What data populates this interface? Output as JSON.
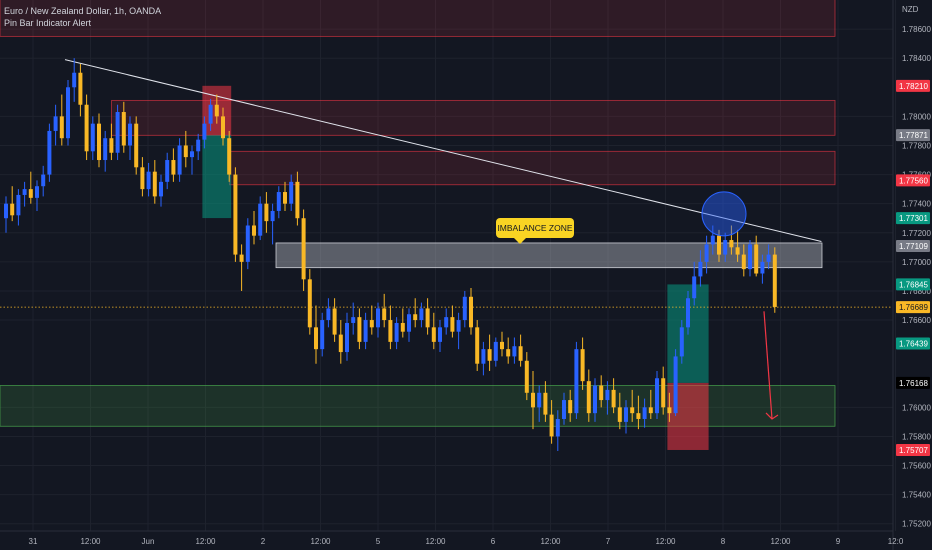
{
  "header": {
    "title": "Euro / New Zealand Dollar, 1h, OANDA",
    "indicator": "Pin Bar Indicator Alert"
  },
  "annotation": {
    "callout": "IMBALANCE ZONE"
  },
  "colors": {
    "background": "#131722",
    "grid": "#1e222d",
    "bull": "#2962ff",
    "bear": "#f9b826",
    "text": "#b2b5be",
    "supply_zone": "#f23645",
    "demand_zone": "#4caf50",
    "imbalance_zone": "#b2b5be",
    "current_price_line": "#f9b826",
    "trendline": "#e0e3eb",
    "arrow": "#f23645"
  },
  "chart_data": {
    "type": "candlestick",
    "symbol": "Euro / New Zealand Dollar, 1h, OANDA",
    "currency_label": "NZD",
    "x_ticks": [
      "31",
      "12:00",
      "Jun",
      "12:00",
      "2",
      "12:00",
      "5",
      "12:00",
      "6",
      "12:00",
      "7",
      "12:00",
      "8",
      "12:00",
      "9",
      "12:0"
    ],
    "y_ticks": [
      "1.78600",
      "1.78400",
      "1.78000",
      "1.77800",
      "1.77600",
      "1.77400",
      "1.77200",
      "1.77000",
      "1.76800",
      "1.76600",
      "1.76000",
      "1.75800",
      "1.75600",
      "1.75400",
      "1.75200"
    ],
    "ylim": [
      1.7515,
      1.788
    ],
    "price_labels": [
      {
        "text": "1.78210",
        "kind": "red"
      },
      {
        "text": "1.77871",
        "kind": "grey"
      },
      {
        "text": "1.77560",
        "kind": "red"
      },
      {
        "text": "1.77301",
        "kind": "green"
      },
      {
        "text": "1.77109",
        "kind": "grey"
      },
      {
        "text": "1.76845",
        "kind": "green"
      },
      {
        "text": "1.76689",
        "kind": "yellow"
      },
      {
        "text": "1.76439",
        "kind": "green"
      },
      {
        "text": "1.76168",
        "kind": "dark"
      },
      {
        "text": "1.75707",
        "kind": "red"
      }
    ],
    "current_price": 1.76689,
    "zones": [
      {
        "kind": "supply",
        "low": 1.7855,
        "high": 1.7882,
        "from_bar": 0,
        "to_bar": 153
      },
      {
        "kind": "supply",
        "low": 1.7787,
        "high": 1.7811,
        "from_bar": 18,
        "to_bar": 153
      },
      {
        "kind": "supply",
        "low": 1.7753,
        "high": 1.7776,
        "from_bar": 37,
        "to_bar": 153
      },
      {
        "kind": "imbalance",
        "low": 1.7696,
        "high": 1.7713,
        "from_bar": 50,
        "to_bar": 150
      },
      {
        "kind": "demand",
        "low": 1.7587,
        "high": 1.7615,
        "from_bar": 0,
        "to_bar": 153
      }
    ],
    "candles": [
      [
        1.773,
        1.7745,
        1.772,
        1.774
      ],
      [
        1.774,
        1.7752,
        1.7728,
        1.7732
      ],
      [
        1.7732,
        1.775,
        1.7725,
        1.7746
      ],
      [
        1.7746,
        1.7755,
        1.7738,
        1.775
      ],
      [
        1.775,
        1.7762,
        1.774,
        1.7744
      ],
      [
        1.7744,
        1.7756,
        1.7735,
        1.7752
      ],
      [
        1.7752,
        1.7766,
        1.7745,
        1.776
      ],
      [
        1.776,
        1.7795,
        1.7755,
        1.779
      ],
      [
        1.779,
        1.7808,
        1.778,
        1.78
      ],
      [
        1.78,
        1.7815,
        1.778,
        1.7785
      ],
      [
        1.7785,
        1.7825,
        1.778,
        1.782
      ],
      [
        1.782,
        1.784,
        1.781,
        1.783
      ],
      [
        1.783,
        1.7836,
        1.78,
        1.7808
      ],
      [
        1.7808,
        1.7815,
        1.777,
        1.7776
      ],
      [
        1.7776,
        1.78,
        1.777,
        1.7795
      ],
      [
        1.7795,
        1.7802,
        1.7765,
        1.777
      ],
      [
        1.777,
        1.779,
        1.7762,
        1.7785
      ],
      [
        1.7785,
        1.7795,
        1.777,
        1.7775
      ],
      [
        1.7775,
        1.7808,
        1.777,
        1.7803
      ],
      [
        1.7803,
        1.781,
        1.7775,
        1.778
      ],
      [
        1.778,
        1.78,
        1.777,
        1.7795
      ],
      [
        1.7795,
        1.78,
        1.776,
        1.7765
      ],
      [
        1.7765,
        1.7772,
        1.7745,
        1.775
      ],
      [
        1.775,
        1.7768,
        1.7745,
        1.7762
      ],
      [
        1.7762,
        1.777,
        1.774,
        1.7745
      ],
      [
        1.7745,
        1.776,
        1.7738,
        1.7755
      ],
      [
        1.7755,
        1.7775,
        1.775,
        1.777
      ],
      [
        1.777,
        1.7778,
        1.7755,
        1.776
      ],
      [
        1.776,
        1.7785,
        1.7755,
        1.778
      ],
      [
        1.778,
        1.779,
        1.7765,
        1.7772
      ],
      [
        1.7772,
        1.778,
        1.776,
        1.7776
      ],
      [
        1.7776,
        1.7788,
        1.777,
        1.7784
      ],
      [
        1.7784,
        1.78,
        1.7778,
        1.7795
      ],
      [
        1.7795,
        1.7812,
        1.779,
        1.7808
      ],
      [
        1.7808,
        1.7815,
        1.7795,
        1.78
      ],
      [
        1.78,
        1.7806,
        1.778,
        1.7785
      ],
      [
        1.7785,
        1.779,
        1.7755,
        1.776
      ],
      [
        1.776,
        1.7765,
        1.77,
        1.7705
      ],
      [
        1.7705,
        1.7712,
        1.768,
        1.77
      ],
      [
        1.77,
        1.773,
        1.7695,
        1.7725
      ],
      [
        1.7725,
        1.7735,
        1.7712,
        1.7718
      ],
      [
        1.7718,
        1.7745,
        1.7715,
        1.774
      ],
      [
        1.774,
        1.7748,
        1.772,
        1.7728
      ],
      [
        1.7728,
        1.774,
        1.7712,
        1.7735
      ],
      [
        1.7735,
        1.7752,
        1.773,
        1.7748
      ],
      [
        1.7748,
        1.7755,
        1.7735,
        1.774
      ],
      [
        1.774,
        1.776,
        1.7735,
        1.7755
      ],
      [
        1.7755,
        1.7762,
        1.7725,
        1.773
      ],
      [
        1.773,
        1.7736,
        1.768,
        1.7688
      ],
      [
        1.7688,
        1.7695,
        1.765,
        1.7655
      ],
      [
        1.7655,
        1.767,
        1.763,
        1.764
      ],
      [
        1.764,
        1.7665,
        1.7635,
        1.766
      ],
      [
        1.766,
        1.7675,
        1.7655,
        1.7668
      ],
      [
        1.7668,
        1.7675,
        1.7645,
        1.765
      ],
      [
        1.765,
        1.766,
        1.763,
        1.7638
      ],
      [
        1.7638,
        1.7665,
        1.7632,
        1.7658
      ],
      [
        1.7658,
        1.7672,
        1.765,
        1.7662
      ],
      [
        1.7662,
        1.7668,
        1.764,
        1.7645
      ],
      [
        1.7645,
        1.7665,
        1.764,
        1.766
      ],
      [
        1.766,
        1.767,
        1.765,
        1.7655
      ],
      [
        1.7655,
        1.7672,
        1.7648,
        1.7668
      ],
      [
        1.7668,
        1.7678,
        1.7655,
        1.766
      ],
      [
        1.766,
        1.767,
        1.764,
        1.7645
      ],
      [
        1.7645,
        1.7662,
        1.764,
        1.7658
      ],
      [
        1.7658,
        1.7668,
        1.7648,
        1.7652
      ],
      [
        1.7652,
        1.7668,
        1.7645,
        1.7664
      ],
      [
        1.7664,
        1.7675,
        1.7655,
        1.766
      ],
      [
        1.766,
        1.7672,
        1.7655,
        1.7668
      ],
      [
        1.7668,
        1.7675,
        1.765,
        1.7655
      ],
      [
        1.7655,
        1.7665,
        1.764,
        1.7645
      ],
      [
        1.7645,
        1.766,
        1.7638,
        1.7655
      ],
      [
        1.7655,
        1.7668,
        1.765,
        1.7662
      ],
      [
        1.7662,
        1.767,
        1.7648,
        1.7652
      ],
      [
        1.7652,
        1.7665,
        1.764,
        1.766
      ],
      [
        1.766,
        1.768,
        1.7655,
        1.7676
      ],
      [
        1.7676,
        1.7682,
        1.765,
        1.7655
      ],
      [
        1.7655,
        1.766,
        1.7625,
        1.763
      ],
      [
        1.763,
        1.7645,
        1.7622,
        1.764
      ],
      [
        1.764,
        1.765,
        1.7625,
        1.7632
      ],
      [
        1.7632,
        1.7648,
        1.7628,
        1.7645
      ],
      [
        1.7645,
        1.7652,
        1.7635,
        1.764
      ],
      [
        1.764,
        1.7648,
        1.763,
        1.7635
      ],
      [
        1.7635,
        1.7648,
        1.763,
        1.7642
      ],
      [
        1.7642,
        1.765,
        1.7628,
        1.7632
      ],
      [
        1.7632,
        1.7638,
        1.7605,
        1.761
      ],
      [
        1.761,
        1.7625,
        1.7585,
        1.76
      ],
      [
        1.76,
        1.7615,
        1.759,
        1.761
      ],
      [
        1.761,
        1.7618,
        1.759,
        1.7595
      ],
      [
        1.7595,
        1.7605,
        1.7575,
        1.758
      ],
      [
        1.758,
        1.7598,
        1.757,
        1.7592
      ],
      [
        1.7592,
        1.761,
        1.7588,
        1.7605
      ],
      [
        1.7605,
        1.7612,
        1.759,
        1.7596
      ],
      [
        1.7596,
        1.7645,
        1.7592,
        1.764
      ],
      [
        1.764,
        1.7648,
        1.7612,
        1.7618
      ],
      [
        1.7618,
        1.7626,
        1.759,
        1.7596
      ],
      [
        1.7596,
        1.762,
        1.759,
        1.7615
      ],
      [
        1.7615,
        1.7622,
        1.76,
        1.7605
      ],
      [
        1.7605,
        1.7618,
        1.7595,
        1.7612
      ],
      [
        1.7612,
        1.762,
        1.7596,
        1.76
      ],
      [
        1.76,
        1.761,
        1.7585,
        1.759
      ],
      [
        1.759,
        1.7605,
        1.7582,
        1.76
      ],
      [
        1.76,
        1.7612,
        1.759,
        1.7596
      ],
      [
        1.7596,
        1.7608,
        1.7585,
        1.7592
      ],
      [
        1.7592,
        1.7606,
        1.7586,
        1.76
      ],
      [
        1.76,
        1.7612,
        1.7592,
        1.7596
      ],
      [
        1.7596,
        1.7625,
        1.7592,
        1.762
      ],
      [
        1.762,
        1.7628,
        1.7595,
        1.76
      ],
      [
        1.76,
        1.761,
        1.759,
        1.7596
      ],
      [
        1.7596,
        1.764,
        1.7594,
        1.7635
      ],
      [
        1.7635,
        1.766,
        1.763,
        1.7655
      ],
      [
        1.7655,
        1.768,
        1.765,
        1.7675
      ],
      [
        1.7675,
        1.77,
        1.767,
        1.769
      ],
      [
        1.769,
        1.7708,
        1.7683,
        1.77
      ],
      [
        1.77,
        1.7718,
        1.7692,
        1.7712
      ],
      [
        1.7712,
        1.7725,
        1.7705,
        1.7718
      ],
      [
        1.7718,
        1.7722,
        1.77,
        1.7705
      ],
      [
        1.7705,
        1.772,
        1.77,
        1.7715
      ],
      [
        1.7715,
        1.7725,
        1.7705,
        1.771
      ],
      [
        1.771,
        1.7722,
        1.77,
        1.7705
      ],
      [
        1.7705,
        1.7712,
        1.769,
        1.7695
      ],
      [
        1.7695,
        1.7715,
        1.769,
        1.7712
      ],
      [
        1.7712,
        1.7718,
        1.769,
        1.7692
      ],
      [
        1.7692,
        1.7705,
        1.7685,
        1.77
      ],
      [
        1.77,
        1.7712,
        1.7695,
        1.7705
      ],
      [
        1.7705,
        1.771,
        1.7665,
        1.7669
      ]
    ],
    "trendline": [
      {
        "bar": 5,
        "price": 1.7839
      },
      {
        "bar": 147,
        "price": 1.7714
      }
    ],
    "highlight_circle": {
      "bar": 118,
      "price": 1.7733
    },
    "arrow": {
      "from": {
        "bar": 126,
        "price": 1.7666
      },
      "to": {
        "bar": 130,
        "price": 1.7592
      }
    },
    "position_boxes": [
      {
        "bar_from": 32,
        "bar_to": 36,
        "entry": 1.77871,
        "top": 1.7821,
        "bottom": 1.77301
      },
      {
        "bar_from": 107,
        "bar_to": 113,
        "entry": 1.76168,
        "top": 1.76845,
        "bottom": 1.75707
      }
    ]
  }
}
